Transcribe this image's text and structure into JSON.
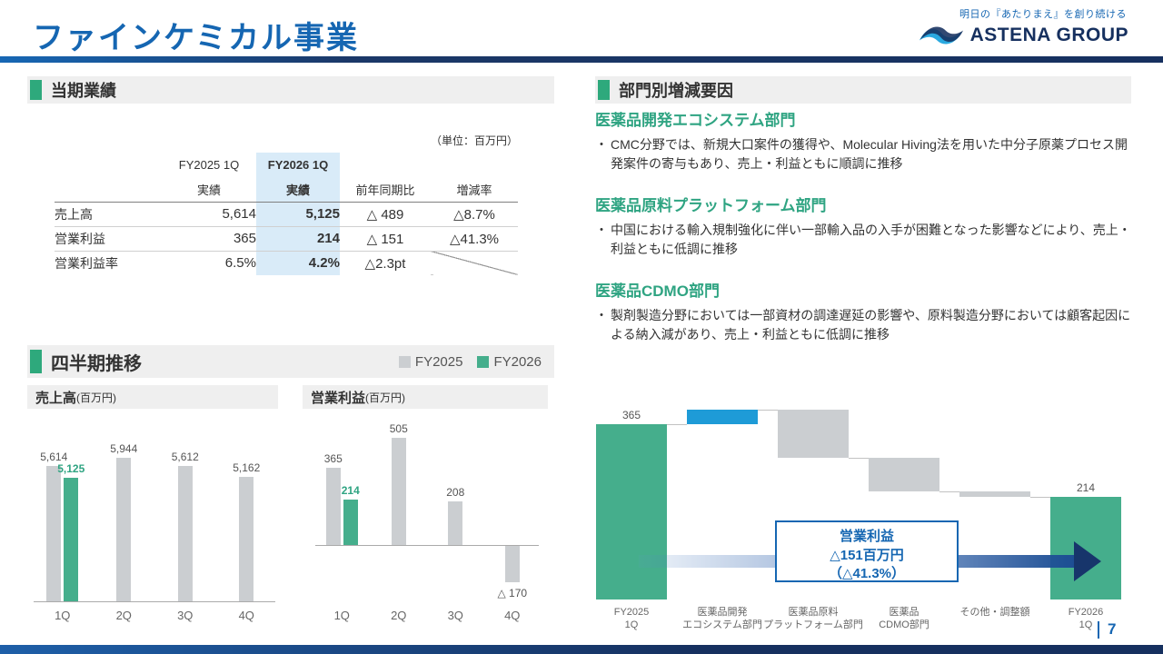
{
  "page": {
    "title": "ファインケミカル事業",
    "tagline": "明日の『あたりまえ』を創り続ける",
    "logo_text": "ASTENA GROUP",
    "page_number": "7"
  },
  "results_section": {
    "title": "当期業績",
    "unit_note": "（単位：百万円）",
    "table": {
      "col_group_headers": [
        "FY2025 1Q",
        "FY2026 1Q"
      ],
      "col_headers": [
        "実績",
        "実績",
        "前年同期比",
        "増減率"
      ],
      "rows": [
        {
          "label": "売上高",
          "fy2025": "5,614",
          "fy2026": "5,125",
          "yoy": "△ 489",
          "rate": "△8.7%"
        },
        {
          "label": "営業利益",
          "fy2025": "365",
          "fy2026": "214",
          "yoy": "△ 151",
          "rate": "△41.3%"
        },
        {
          "label": "営業利益率",
          "fy2025": "6.5%",
          "fy2026": "4.2%",
          "yoy": "△2.3pt",
          "rate": ""
        }
      ]
    }
  },
  "factors_section": {
    "title": "部門別増減要因",
    "items": [
      {
        "heading": "医薬品開発エコシステム部門",
        "bullet": "CMC分野では、新規大口案件の獲得や、Molecular Hiving法を用いた中分子原薬プロセス開発案件の寄与もあり、売上・利益ともに順調に推移"
      },
      {
        "heading": "医薬品原料プラットフォーム部門",
        "bullet": "中国における輸入規制強化に伴い一部輸入品の入手が困難となった影響などにより、売上・利益ともに低調に推移"
      },
      {
        "heading": "医薬品CDMO部門",
        "bullet": "製剤製造分野においては一部資材の調達遅延の影響や、原料製造分野においては顧客起因による納入減があり、売上・利益ともに低調に推移"
      }
    ]
  },
  "quarterly_section": {
    "title": "四半期推移",
    "legend": [
      {
        "label": "FY2025",
        "color": "#CBCED1"
      },
      {
        "label": "FY2026",
        "color": "#45AE8C"
      }
    ],
    "panels": [
      {
        "title": "売上高",
        "unit": "(百万円)"
      },
      {
        "title": "営業利益",
        "unit": "(百万円)"
      }
    ]
  },
  "chart_data": [
    {
      "type": "bar",
      "title": "売上高(百万円)",
      "categories": [
        "1Q",
        "2Q",
        "3Q",
        "4Q"
      ],
      "series": [
        {
          "name": "FY2025",
          "values": [
            5614,
            5944,
            5612,
            5162
          ]
        },
        {
          "name": "FY2026",
          "values": [
            5125,
            null,
            null,
            null
          ]
        }
      ],
      "ylim": [
        0,
        6500
      ],
      "legend_position": "top"
    },
    {
      "type": "bar",
      "title": "営業利益(百万円)",
      "categories": [
        "1Q",
        "2Q",
        "3Q",
        "4Q"
      ],
      "series": [
        {
          "name": "FY2025",
          "values": [
            365,
            505,
            208,
            -170
          ]
        },
        {
          "name": "FY2026",
          "values": [
            214,
            null,
            null,
            null
          ]
        }
      ],
      "ylim": [
        -250,
        600
      ],
      "legend_position": "top"
    },
    {
      "type": "waterfall",
      "title": "営業利益増減要因（FY2025 1Q→FY2026 1Q）",
      "categories": [
        "FY2025\n1Q",
        "医薬品開発\nエコシステム部門",
        "医薬品原料\nプラットフォーム部門",
        "医薬品\nCDMO部門",
        "その他・調整額",
        "FY2026\n1Q"
      ],
      "start": 365,
      "deltas": [
        30,
        -100,
        -70,
        -11
      ],
      "end": 214,
      "annotation": [
        "営業利益",
        "△151百万円",
        "（△41.3%）"
      ]
    }
  ]
}
